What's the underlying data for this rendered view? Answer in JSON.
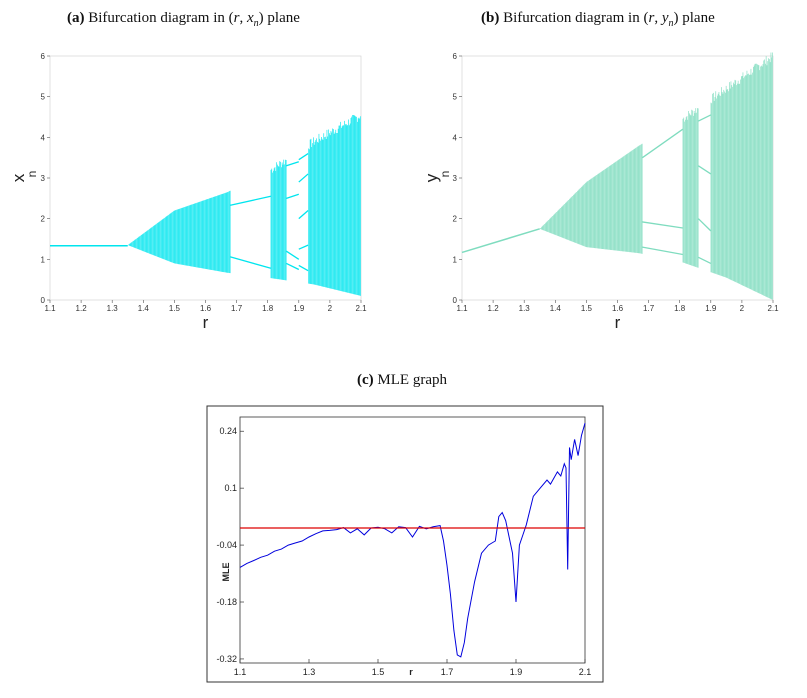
{
  "captions": {
    "a": {
      "tag": "(a)",
      "text": "Bifurcation diagram in",
      "math_open": "(",
      "var1": "r",
      "comma": ", ",
      "var2": "x",
      "sub": "n",
      "math_close": ")",
      "tail": "plane"
    },
    "b": {
      "tag": "(b)",
      "text": "Bifurcation diagram in",
      "math_open": "(",
      "var1": "r",
      "comma": ", ",
      "var2": "y",
      "sub": "n",
      "math_close": ")",
      "tail": "plane"
    },
    "c": {
      "tag": "(c)",
      "text": "MLE graph"
    }
  },
  "chart_data": [
    {
      "id": "a",
      "type": "scatter",
      "xlabel": "r",
      "ylabel": "x",
      "ylabel_sub": "n",
      "xlim": [
        1.1,
        2.1
      ],
      "ylim": [
        0,
        6
      ],
      "xticks": [
        "1.1",
        "1.2",
        "1.3",
        "1.4",
        "1.5",
        "1.6",
        "1.7",
        "1.8",
        "1.9",
        "2",
        "2.1"
      ],
      "yticks": [
        "0",
        "1",
        "2",
        "3",
        "4",
        "5",
        "6"
      ],
      "color": "#00e5ee",
      "fixed_point": 1.333,
      "first_bifurcation_r": 1.35,
      "windows": [
        {
          "r": [
            1.68,
            1.81
          ],
          "branches": [
            [
              2.33,
              2.55
            ],
            [
              1.06,
              0.78
            ]
          ]
        },
        {
          "r": [
            1.86,
            1.9
          ],
          "branches": [
            [
              3.3,
              3.4
            ],
            [
              2.5,
              2.6
            ],
            [
              1.2,
              1.0
            ],
            [
              0.9,
              0.75
            ]
          ]
        },
        {
          "r": [
            1.9,
            1.93
          ],
          "branches": [
            [
              3.45,
              3.6
            ],
            [
              2.9,
              3.1
            ],
            [
              2.0,
              2.2
            ],
            [
              1.25,
              1.35
            ],
            [
              0.85,
              0.72
            ]
          ]
        }
      ],
      "chaos_envelope": {
        "upper": [
          [
            1.35,
            1.35
          ],
          [
            1.5,
            2.2
          ],
          [
            1.67,
            2.65
          ],
          [
            1.8,
            3.15
          ],
          [
            1.95,
            3.9
          ],
          [
            2.1,
            4.55
          ]
        ],
        "lower": [
          [
            1.35,
            1.35
          ],
          [
            1.5,
            0.9
          ],
          [
            1.67,
            0.67
          ],
          [
            1.8,
            0.55
          ],
          [
            1.95,
            0.38
          ],
          [
            2.1,
            0.1
          ]
        ]
      }
    },
    {
      "id": "b",
      "type": "scatter",
      "xlabel": "r",
      "ylabel": "y",
      "ylabel_sub": "n",
      "xlim": [
        1.1,
        2.1
      ],
      "ylim": [
        0,
        6
      ],
      "xticks": [
        "1.1",
        "1.2",
        "1.3",
        "1.4",
        "1.5",
        "1.6",
        "1.7",
        "1.8",
        "1.9",
        "2",
        "2.1"
      ],
      "yticks": [
        "0",
        "1",
        "2",
        "3",
        "4",
        "5",
        "6"
      ],
      "color": "#7fdcbf",
      "fixed_line": [
        [
          1.1,
          1.17
        ],
        [
          1.35,
          1.75
        ]
      ],
      "first_bifurcation_r": 1.35,
      "windows": [
        {
          "r": [
            1.68,
            1.81
          ],
          "branches": [
            [
              3.5,
              4.2
            ],
            [
              1.92,
              1.77
            ],
            [
              1.3,
              1.12
            ]
          ]
        },
        {
          "r": [
            1.86,
            1.9
          ],
          "branches": [
            [
              4.4,
              4.55
            ],
            [
              3.3,
              3.1
            ],
            [
              2.0,
              1.7
            ],
            [
              1.05,
              0.9
            ]
          ]
        }
      ],
      "chaos_envelope": {
        "upper": [
          [
            1.35,
            1.75
          ],
          [
            1.5,
            2.9
          ],
          [
            1.67,
            3.8
          ],
          [
            1.8,
            4.4
          ],
          [
            1.95,
            5.2
          ],
          [
            2.1,
            6.0
          ]
        ],
        "lower": [
          [
            1.35,
            1.75
          ],
          [
            1.5,
            1.3
          ],
          [
            1.67,
            1.15
          ],
          [
            1.8,
            0.95
          ],
          [
            1.95,
            0.55
          ],
          [
            2.1,
            0.0
          ]
        ]
      }
    },
    {
      "id": "c",
      "type": "line",
      "xlabel": "r",
      "ylabel": "MLE",
      "xlim": [
        1.1,
        2.1
      ],
      "ylim": [
        -0.33,
        0.275
      ],
      "xticks": [
        "1.1",
        "1.3",
        "1.5",
        "1.7",
        "1.9",
        "2.1"
      ],
      "yticks": [
        "-0.32",
        "-0.18",
        "-0.04",
        "0.1",
        "0.24"
      ],
      "series": [
        {
          "color": "#0000dd",
          "x": [
            1.1,
            1.12,
            1.14,
            1.16,
            1.18,
            1.2,
            1.22,
            1.24,
            1.26,
            1.28,
            1.3,
            1.32,
            1.34,
            1.36,
            1.38,
            1.4,
            1.42,
            1.44,
            1.46,
            1.48,
            1.5,
            1.52,
            1.54,
            1.56,
            1.58,
            1.6,
            1.62,
            1.64,
            1.66,
            1.68,
            1.69,
            1.7,
            1.71,
            1.72,
            1.73,
            1.74,
            1.75,
            1.76,
            1.78,
            1.8,
            1.82,
            1.83,
            1.84,
            1.85,
            1.86,
            1.87,
            1.88,
            1.89,
            1.9,
            1.91,
            1.92,
            1.93,
            1.95,
            1.97,
            1.99,
            2.0,
            2.02,
            2.03,
            2.04,
            2.045,
            2.05,
            2.055,
            2.06,
            2.07,
            2.08,
            2.09,
            2.1
          ],
          "y": [
            -0.095,
            -0.085,
            -0.078,
            -0.07,
            -0.065,
            -0.055,
            -0.05,
            -0.04,
            -0.035,
            -0.03,
            -0.02,
            -0.012,
            -0.005,
            -0.004,
            -0.002,
            0.003,
            -0.01,
            0.0,
            -0.015,
            0.002,
            0.004,
            0.0,
            -0.01,
            0.005,
            0.003,
            -0.02,
            0.006,
            0.0,
            0.005,
            0.008,
            -0.03,
            -0.09,
            -0.16,
            -0.25,
            -0.31,
            -0.315,
            -0.28,
            -0.22,
            -0.13,
            -0.06,
            -0.04,
            -0.035,
            -0.03,
            0.03,
            0.04,
            0.02,
            -0.02,
            -0.06,
            -0.18,
            -0.04,
            -0.015,
            0.01,
            0.08,
            0.1,
            0.12,
            0.11,
            0.14,
            0.13,
            0.16,
            0.15,
            -0.1,
            0.2,
            0.17,
            0.22,
            0.18,
            0.23,
            0.26
          ]
        },
        {
          "color": "#dd0000",
          "x": [
            1.1,
            2.1
          ],
          "y": [
            0.002,
            0.002
          ]
        }
      ]
    }
  ]
}
